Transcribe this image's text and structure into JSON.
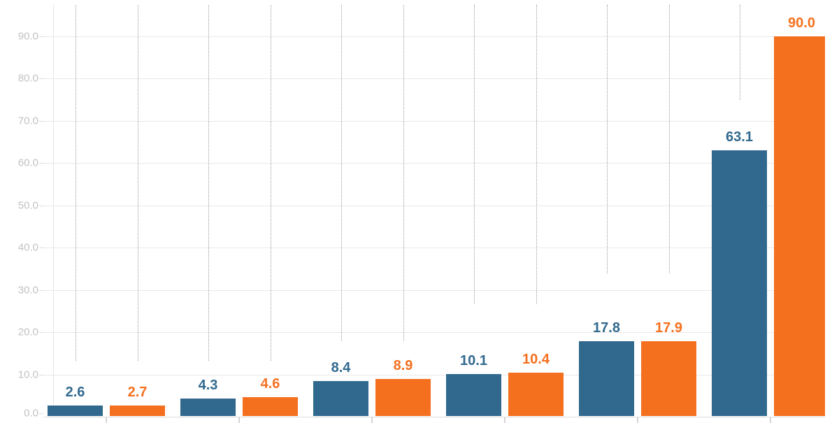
{
  "chart_data": {
    "type": "bar",
    "title": "",
    "orientation": "vertical",
    "grouped": true,
    "categories": [
      "",
      "",
      "",
      "",
      "",
      ""
    ],
    "series": [
      {
        "name": "blue-series",
        "color": "#31698e",
        "values": [
          2.6,
          4.3,
          8.4,
          10.1,
          17.8,
          63.1
        ],
        "labels": [
          "2.6",
          "4.3",
          "8.4",
          "10.1",
          "17.8",
          "63.1"
        ],
        "drop_line_end_values": [
          13.2,
          13.2,
          17.8,
          26.6,
          34.0,
          75.0
        ]
      },
      {
        "name": "orange-series",
        "color": "#f4701f",
        "values": [
          2.7,
          4.6,
          8.9,
          10.4,
          17.9,
          90.0
        ],
        "labels": [
          "2.7",
          "4.6",
          "8.9",
          "10.4",
          "17.9",
          "90.0"
        ],
        "drop_line_end_values": [
          13.2,
          13.2,
          17.8,
          26.6,
          34.0,
          null
        ]
      }
    ],
    "y_axis": {
      "tick_labels": [
        "0.0",
        "10.0",
        "20.0",
        "30.0",
        "40.0",
        "50.0",
        "60.0",
        "70.0",
        "80.0",
        "90.0"
      ],
      "tick_values": [
        0,
        10,
        20,
        30,
        40,
        50,
        60,
        70,
        80,
        90
      ],
      "min": 0,
      "max": 90,
      "grid": true
    },
    "x_axis": {
      "tick_labels": [],
      "ticks_at_group_centers": true
    },
    "legend": "none",
    "value_labels": "above each bar, one decimal, colored same as bar",
    "style_colors": {
      "background": "#ffffff",
      "gridline": "#e8e8e8",
      "axis_line": "#dcdcdc",
      "x_tick": "#d4d4d4",
      "y_tick": "#dddddd",
      "y_tick_label": "#c2c2c2",
      "drop_line": "#9b9b9b",
      "plot_left_edge_line": "#e4e4e4"
    }
  }
}
